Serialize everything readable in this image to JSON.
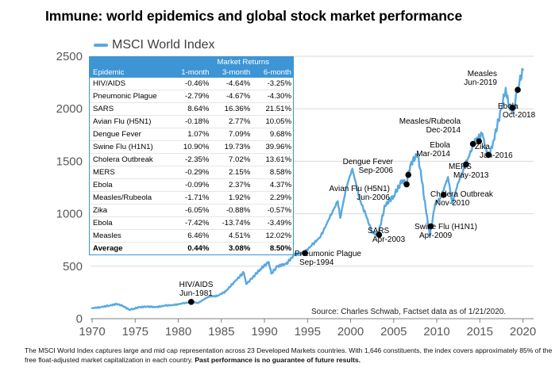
{
  "title": "Immune: world epidemics and global stock market performance",
  "legend": {
    "series_name": "MSCI World Index"
  },
  "colors": {
    "line": "#5aa9e0",
    "table_header": "#3d95d6",
    "marker": "#000000"
  },
  "source": "Source: Charles Schwab, Factset data as of 1/21/2020.",
  "footnote": {
    "text": "The MSCI World Index captures large and mid cap representation across 23 Developed Markets countries. With 1,646 constituents, the index covers approximately 85% of the free float-adjusted market capitalization in each country.",
    "disclaimer": "Past performance is no guarantee of future results."
  },
  "table": {
    "title": "Market Returns",
    "headers": [
      "Epidemic",
      "1-month",
      "3-month",
      "6-month"
    ],
    "rows": [
      [
        "HIV/AIDS",
        "-0.46%",
        "-4.64%",
        "-3.25%"
      ],
      [
        "Pneumonic Plague",
        "-2.79%",
        "-4.67%",
        "-4.30%"
      ],
      [
        "SARS",
        "8.64%",
        "16.36%",
        "21.51%"
      ],
      [
        "Avian Flu (H5N1)",
        "-0.18%",
        "2.77%",
        "10.05%"
      ],
      [
        "Dengue Fever",
        "1.07%",
        "7.09%",
        "9.68%"
      ],
      [
        "Swine Flu (H1N1)",
        "10.90%",
        "19.73%",
        "39.96%"
      ],
      [
        "Cholera Outbreak",
        "-2.35%",
        "7.02%",
        "13.61%"
      ],
      [
        "MERS",
        "-0.29%",
        "2.15%",
        "8.58%"
      ],
      [
        "Ebola",
        "-0.09%",
        "2.37%",
        "4.37%"
      ],
      [
        "Measles/Rubeola",
        "-1.71%",
        "1.92%",
        "2.29%"
      ],
      [
        "Zika",
        "-6.05%",
        "-0.88%",
        "-0.57%"
      ],
      [
        "Ebola",
        "-7.42%",
        "-13.74%",
        "-3.49%"
      ],
      [
        "Measles",
        "6.46%",
        "4.51%",
        "12.02%"
      ]
    ],
    "average": [
      "Average",
      "0.44%",
      "3.08%",
      "8.50%"
    ]
  },
  "chart_data": {
    "type": "line",
    "series": [
      {
        "name": "MSCI World Index",
        "x": [
          1970.0,
          1971.0,
          1972.0,
          1972.9,
          1973.6,
          1974.3,
          1974.8,
          1975.5,
          1976.5,
          1977.5,
          1978.5,
          1979.5,
          1980.5,
          1981.5,
          1982.3,
          1982.9,
          1983.5,
          1984.5,
          1985.5,
          1986.5,
          1987.6,
          1987.9,
          1988.5,
          1989.5,
          1990.5,
          1990.8,
          1991.5,
          1992.5,
          1993.5,
          1994.5,
          1995.5,
          1996.5,
          1997.5,
          1998.5,
          1998.8,
          1999.5,
          2000.2,
          2001.0,
          2001.8,
          2002.5,
          2003.2,
          2004.0,
          2005.0,
          2006.0,
          2006.4,
          2007.0,
          2007.8,
          2008.3,
          2008.8,
          2009.2,
          2009.8,
          2010.5,
          2011.3,
          2011.8,
          2012.5,
          2013.5,
          2014.5,
          2015.3,
          2015.8,
          2016.1,
          2016.6,
          2017.5,
          2018.0,
          2018.3,
          2018.9,
          2019.3,
          2019.6,
          2020.0
        ],
        "values": [
          100,
          110,
          125,
          140,
          120,
          85,
          95,
          110,
          115,
          110,
          125,
          130,
          145,
          160,
          150,
          180,
          210,
          215,
          260,
          350,
          440,
          330,
          380,
          470,
          540,
          430,
          500,
          520,
          610,
          620,
          700,
          780,
          950,
          1120,
          960,
          1250,
          1430,
          1150,
          980,
          820,
          800,
          1080,
          1170,
          1320,
          1280,
          1480,
          1570,
          1300,
          1000,
          790,
          1090,
          1160,
          1350,
          1100,
          1300,
          1500,
          1710,
          1760,
          1580,
          1560,
          1700,
          2000,
          2200,
          2050,
          1970,
          2150,
          2250,
          2370
        ],
        "markers": [
          {
            "x": 1981.5,
            "y": 160,
            "label": "HIV/AIDS",
            "date": "Jun-1981"
          },
          {
            "x": 1994.7,
            "y": 625,
            "label": "Pneumonic Plague",
            "date": "Sep-1994"
          },
          {
            "x": 2003.3,
            "y": 800,
            "label": "SARS",
            "date": "Apr-2003"
          },
          {
            "x": 2006.5,
            "y": 1280,
            "label": "Avian Flu (H5N1)",
            "date": "Jun-2006"
          },
          {
            "x": 2006.7,
            "y": 1370,
            "label": "Dengue Fever",
            "date": "Sep-2006"
          },
          {
            "x": 2009.3,
            "y": 880,
            "label": "Swine Flu (H1N1)",
            "date": "Apr-2009"
          },
          {
            "x": 2010.8,
            "y": 1180,
            "label": "Cholera Outbreak",
            "date": "Nov-2010"
          },
          {
            "x": 2013.4,
            "y": 1470,
            "label": "MERS",
            "date": "May-2013"
          },
          {
            "x": 2014.2,
            "y": 1665,
            "label": "Ebola",
            "date": "Mar-2014"
          },
          {
            "x": 2014.9,
            "y": 1690,
            "label": "Measles/Rubeola",
            "date": "Dec-2014"
          },
          {
            "x": 2016.0,
            "y": 1560,
            "label": "Zika",
            "date": "Jan-2016"
          },
          {
            "x": 2018.8,
            "y": 2010,
            "label": "Ebola",
            "date": "Oct-2018"
          },
          {
            "x": 2019.4,
            "y": 2180,
            "label": "Measles",
            "date": "Jun-2019"
          }
        ]
      }
    ],
    "xlim": [
      1970,
      2020.5
    ],
    "ylim": [
      0,
      2500
    ],
    "xticks": [
      1970,
      1975,
      1980,
      1985,
      1990,
      1995,
      2000,
      2005,
      2010,
      2015,
      2020
    ],
    "yticks": [
      0,
      500,
      1000,
      1500,
      2000,
      2500
    ],
    "grid": "horizontal",
    "legend_position": "top-left"
  }
}
